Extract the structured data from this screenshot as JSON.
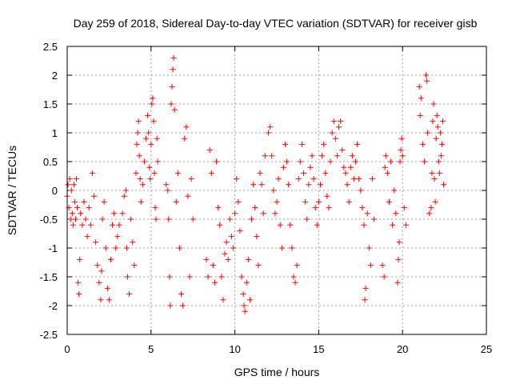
{
  "chart_data": {
    "type": "scatter",
    "title": "Day 259 of 2018, Sidereal Day-to-day VTEC variation (SDTVAR) for receiver gisb",
    "xlabel": "GPS time / hours",
    "ylabel": "SDTVAR / TECUs",
    "xlim": [
      0,
      25
    ],
    "ylim": [
      -2.5,
      2.5
    ],
    "xticks": [
      0,
      5,
      10,
      15,
      20,
      25
    ],
    "xtick_labels": [
      "0",
      "5",
      "10",
      "15",
      "20",
      "25"
    ],
    "yticks": [
      -2.5,
      -2,
      -1.5,
      -1,
      -0.5,
      0,
      0.5,
      1,
      1.5,
      2,
      2.5
    ],
    "ytick_labels": [
      "-2.5",
      "-2",
      "-1.5",
      "-1",
      "-0.5",
      "0",
      "0.5",
      "1",
      "1.5",
      "2",
      "2.5"
    ],
    "grid": true,
    "marker": "plus",
    "color": "#ff0000",
    "series": [
      {
        "name": "SDTVAR",
        "points": [
          [
            0.0,
            -0.1
          ],
          [
            0.05,
            0.1
          ],
          [
            0.1,
            -0.3
          ],
          [
            0.15,
            0.2
          ],
          [
            0.2,
            -0.5
          ],
          [
            0.25,
            0.0
          ],
          [
            0.3,
            -0.4
          ],
          [
            0.35,
            -0.6
          ],
          [
            0.4,
            0.1
          ],
          [
            0.45,
            -0.2
          ],
          [
            0.5,
            -0.5
          ],
          [
            0.55,
            0.2
          ],
          [
            0.6,
            -0.3
          ],
          [
            0.65,
            -1.6
          ],
          [
            0.7,
            -1.8
          ],
          [
            0.75,
            -1.2
          ],
          [
            0.8,
            -0.4
          ],
          [
            0.9,
            -0.6
          ],
          [
            1.0,
            -0.2
          ],
          [
            1.1,
            -0.5
          ],
          [
            1.2,
            -0.8
          ],
          [
            1.3,
            -0.3
          ],
          [
            1.4,
            -0.6
          ],
          [
            1.5,
            0.3
          ],
          [
            1.6,
            -0.1
          ],
          [
            1.7,
            -0.9
          ],
          [
            1.8,
            -1.3
          ],
          [
            1.9,
            -1.6
          ],
          [
            2.0,
            -1.9
          ],
          [
            2.05,
            -1.4
          ],
          [
            2.1,
            -0.5
          ],
          [
            2.2,
            -0.2
          ],
          [
            2.3,
            -1.0
          ],
          [
            2.4,
            -1.7
          ],
          [
            2.5,
            -1.9
          ],
          [
            2.6,
            -1.2
          ],
          [
            2.7,
            -0.6
          ],
          [
            2.8,
            -0.4
          ],
          [
            2.9,
            -1.0
          ],
          [
            3.0,
            -0.8
          ],
          [
            3.1,
            -0.6
          ],
          [
            3.3,
            -0.4
          ],
          [
            3.4,
            -0.1
          ],
          [
            3.5,
            0.0
          ],
          [
            3.55,
            -1.0
          ],
          [
            3.6,
            -1.5
          ],
          [
            3.7,
            -1.8
          ],
          [
            3.8,
            -0.5
          ],
          [
            3.9,
            -0.9
          ],
          [
            4.0,
            -1.3
          ],
          [
            4.1,
            0.3
          ],
          [
            4.15,
            0.8
          ],
          [
            4.2,
            1.0
          ],
          [
            4.25,
            1.2
          ],
          [
            4.3,
            0.6
          ],
          [
            4.35,
            0.2
          ],
          [
            4.4,
            -0.2
          ],
          [
            4.5,
            0.1
          ],
          [
            4.6,
            0.5
          ],
          [
            4.7,
            0.9
          ],
          [
            4.8,
            1.3
          ],
          [
            4.85,
            1.0
          ],
          [
            4.9,
            0.4
          ],
          [
            4.95,
            0.2
          ],
          [
            5.0,
            0.8
          ],
          [
            5.05,
            1.5
          ],
          [
            5.1,
            1.6
          ],
          [
            5.15,
            1.2
          ],
          [
            5.2,
            0.3
          ],
          [
            5.25,
            -0.3
          ],
          [
            5.3,
            -0.5
          ],
          [
            5.35,
            0.9
          ],
          [
            5.4,
            0.5
          ],
          [
            5.9,
            0.1
          ],
          [
            6.0,
            0.0
          ],
          [
            6.05,
            -0.5
          ],
          [
            6.1,
            -1.5
          ],
          [
            6.15,
            -2.0
          ],
          [
            6.2,
            1.5
          ],
          [
            6.25,
            1.8
          ],
          [
            6.3,
            2.1
          ],
          [
            6.35,
            2.3
          ],
          [
            6.4,
            1.4
          ],
          [
            6.5,
            -0.2
          ],
          [
            6.6,
            0.3
          ],
          [
            6.7,
            -1.0
          ],
          [
            6.8,
            -1.8
          ],
          [
            6.9,
            -2.0
          ],
          [
            7.0,
            0.9
          ],
          [
            7.1,
            1.1
          ],
          [
            7.2,
            -0.1
          ],
          [
            7.3,
            -1.5
          ],
          [
            7.4,
            0.2
          ],
          [
            7.5,
            -0.5
          ],
          [
            8.3,
            -1.2
          ],
          [
            8.4,
            -1.5
          ],
          [
            8.5,
            0.7
          ],
          [
            8.6,
            0.3
          ],
          [
            8.7,
            -1.3
          ],
          [
            8.8,
            -1.6
          ],
          [
            8.9,
            0.5
          ],
          [
            9.0,
            -0.3
          ],
          [
            9.1,
            -0.6
          ],
          [
            9.2,
            -1.5
          ],
          [
            9.3,
            -1.9
          ],
          [
            9.4,
            -1.1
          ],
          [
            9.5,
            -0.9
          ],
          [
            9.6,
            -1.2
          ],
          [
            9.7,
            -0.5
          ],
          [
            9.8,
            -0.8
          ],
          [
            9.9,
            -1.0
          ],
          [
            10.0,
            -0.4
          ],
          [
            10.1,
            0.2
          ],
          [
            10.2,
            -0.2
          ],
          [
            10.3,
            -0.7
          ],
          [
            10.4,
            -1.5
          ],
          [
            10.5,
            -1.8
          ],
          [
            10.55,
            -2.0
          ],
          [
            10.6,
            -2.1
          ],
          [
            10.7,
            -1.6
          ],
          [
            10.8,
            -1.2
          ],
          [
            10.9,
            -1.9
          ],
          [
            11.0,
            -0.5
          ],
          [
            11.1,
            0.1
          ],
          [
            11.2,
            -0.3
          ],
          [
            11.3,
            -0.8
          ],
          [
            11.4,
            -1.3
          ],
          [
            11.5,
            0.3
          ],
          [
            11.6,
            0.1
          ],
          [
            11.7,
            -0.4
          ],
          [
            11.8,
            0.6
          ],
          [
            12.0,
            1.0
          ],
          [
            12.1,
            1.1
          ],
          [
            12.2,
            0.6
          ],
          [
            12.3,
            0.0
          ],
          [
            12.4,
            -0.4
          ],
          [
            12.5,
            -0.2
          ],
          [
            12.6,
            0.2
          ],
          [
            12.7,
            -0.6
          ],
          [
            12.8,
            -1.0
          ],
          [
            12.9,
            0.4
          ],
          [
            13.0,
            0.8
          ],
          [
            13.1,
            0.5
          ],
          [
            13.2,
            0.1
          ],
          [
            13.3,
            -0.6
          ],
          [
            13.4,
            -1.0
          ],
          [
            13.5,
            -1.5
          ],
          [
            13.6,
            -1.6
          ],
          [
            13.7,
            -1.3
          ],
          [
            13.8,
            0.2
          ],
          [
            13.9,
            0.5
          ],
          [
            14.0,
            0.8
          ],
          [
            14.1,
            0.3
          ],
          [
            14.2,
            -0.2
          ],
          [
            14.3,
            -0.5
          ],
          [
            14.4,
            0.1
          ],
          [
            14.5,
            0.4
          ],
          [
            14.6,
            0.6
          ],
          [
            14.7,
            0.2
          ],
          [
            14.8,
            -0.3
          ],
          [
            14.9,
            -0.6
          ],
          [
            15.0,
            -0.2
          ],
          [
            15.1,
            0.1
          ],
          [
            15.2,
            0.6
          ],
          [
            15.3,
            0.8
          ],
          [
            15.4,
            0.3
          ],
          [
            15.5,
            -0.1
          ],
          [
            15.6,
            -0.3
          ],
          [
            15.7,
            0.5
          ],
          [
            15.8,
            1.0
          ],
          [
            15.9,
            1.2
          ],
          [
            16.0,
            0.9
          ],
          [
            16.1,
            0.6
          ],
          [
            16.2,
            1.1
          ],
          [
            16.3,
            1.2
          ],
          [
            16.4,
            0.7
          ],
          [
            16.5,
            0.4
          ],
          [
            16.6,
            0.3
          ],
          [
            16.7,
            0.1
          ],
          [
            16.8,
            -0.2
          ],
          [
            16.9,
            0.4
          ],
          [
            17.0,
            0.6
          ],
          [
            17.1,
            0.2
          ],
          [
            17.2,
            0.5
          ],
          [
            17.3,
            0.8
          ],
          [
            17.4,
            0.2
          ],
          [
            17.5,
            0.0
          ],
          [
            17.6,
            -0.3
          ],
          [
            17.7,
            -0.6
          ],
          [
            17.75,
            -1.9
          ],
          [
            17.8,
            -1.7
          ],
          [
            17.9,
            -0.4
          ],
          [
            18.0,
            -1.0
          ],
          [
            18.1,
            -1.3
          ],
          [
            18.2,
            0.2
          ],
          [
            18.3,
            -0.5
          ],
          [
            18.8,
            -1.3
          ],
          [
            18.9,
            -1.5
          ],
          [
            18.95,
            0.4
          ],
          [
            19.0,
            0.6
          ],
          [
            19.1,
            0.3
          ],
          [
            19.2,
            -0.2
          ],
          [
            19.3,
            0.5
          ],
          [
            19.4,
            -0.6
          ],
          [
            19.5,
            0.0
          ],
          [
            19.6,
            -0.4
          ],
          [
            19.7,
            -1.6
          ],
          [
            19.75,
            -1.2
          ],
          [
            19.8,
            -0.9
          ],
          [
            19.85,
            0.5
          ],
          [
            19.9,
            0.7
          ],
          [
            19.95,
            0.9
          ],
          [
            20.0,
            0.6
          ],
          [
            20.1,
            -0.3
          ],
          [
            20.2,
            -0.6
          ],
          [
            21.0,
            1.8
          ],
          [
            21.05,
            1.3
          ],
          [
            21.1,
            1.6
          ],
          [
            21.2,
            0.8
          ],
          [
            21.3,
            0.5
          ],
          [
            21.4,
            2.0
          ],
          [
            21.45,
            1.9
          ],
          [
            21.5,
            1.0
          ],
          [
            21.6,
            -0.4
          ],
          [
            21.7,
            -0.3
          ],
          [
            21.75,
            0.3
          ],
          [
            21.8,
            1.2
          ],
          [
            21.85,
            1.5
          ],
          [
            21.9,
            0.2
          ],
          [
            21.95,
            -0.2
          ],
          [
            22.0,
            0.9
          ],
          [
            22.05,
            1.3
          ],
          [
            22.1,
            1.1
          ],
          [
            22.15,
            0.5
          ],
          [
            22.2,
            0.3
          ],
          [
            22.25,
            1.0
          ],
          [
            22.3,
            0.6
          ],
          [
            22.35,
            0.8
          ],
          [
            22.4,
            1.2
          ],
          [
            22.45,
            0.1
          ]
        ]
      }
    ]
  }
}
